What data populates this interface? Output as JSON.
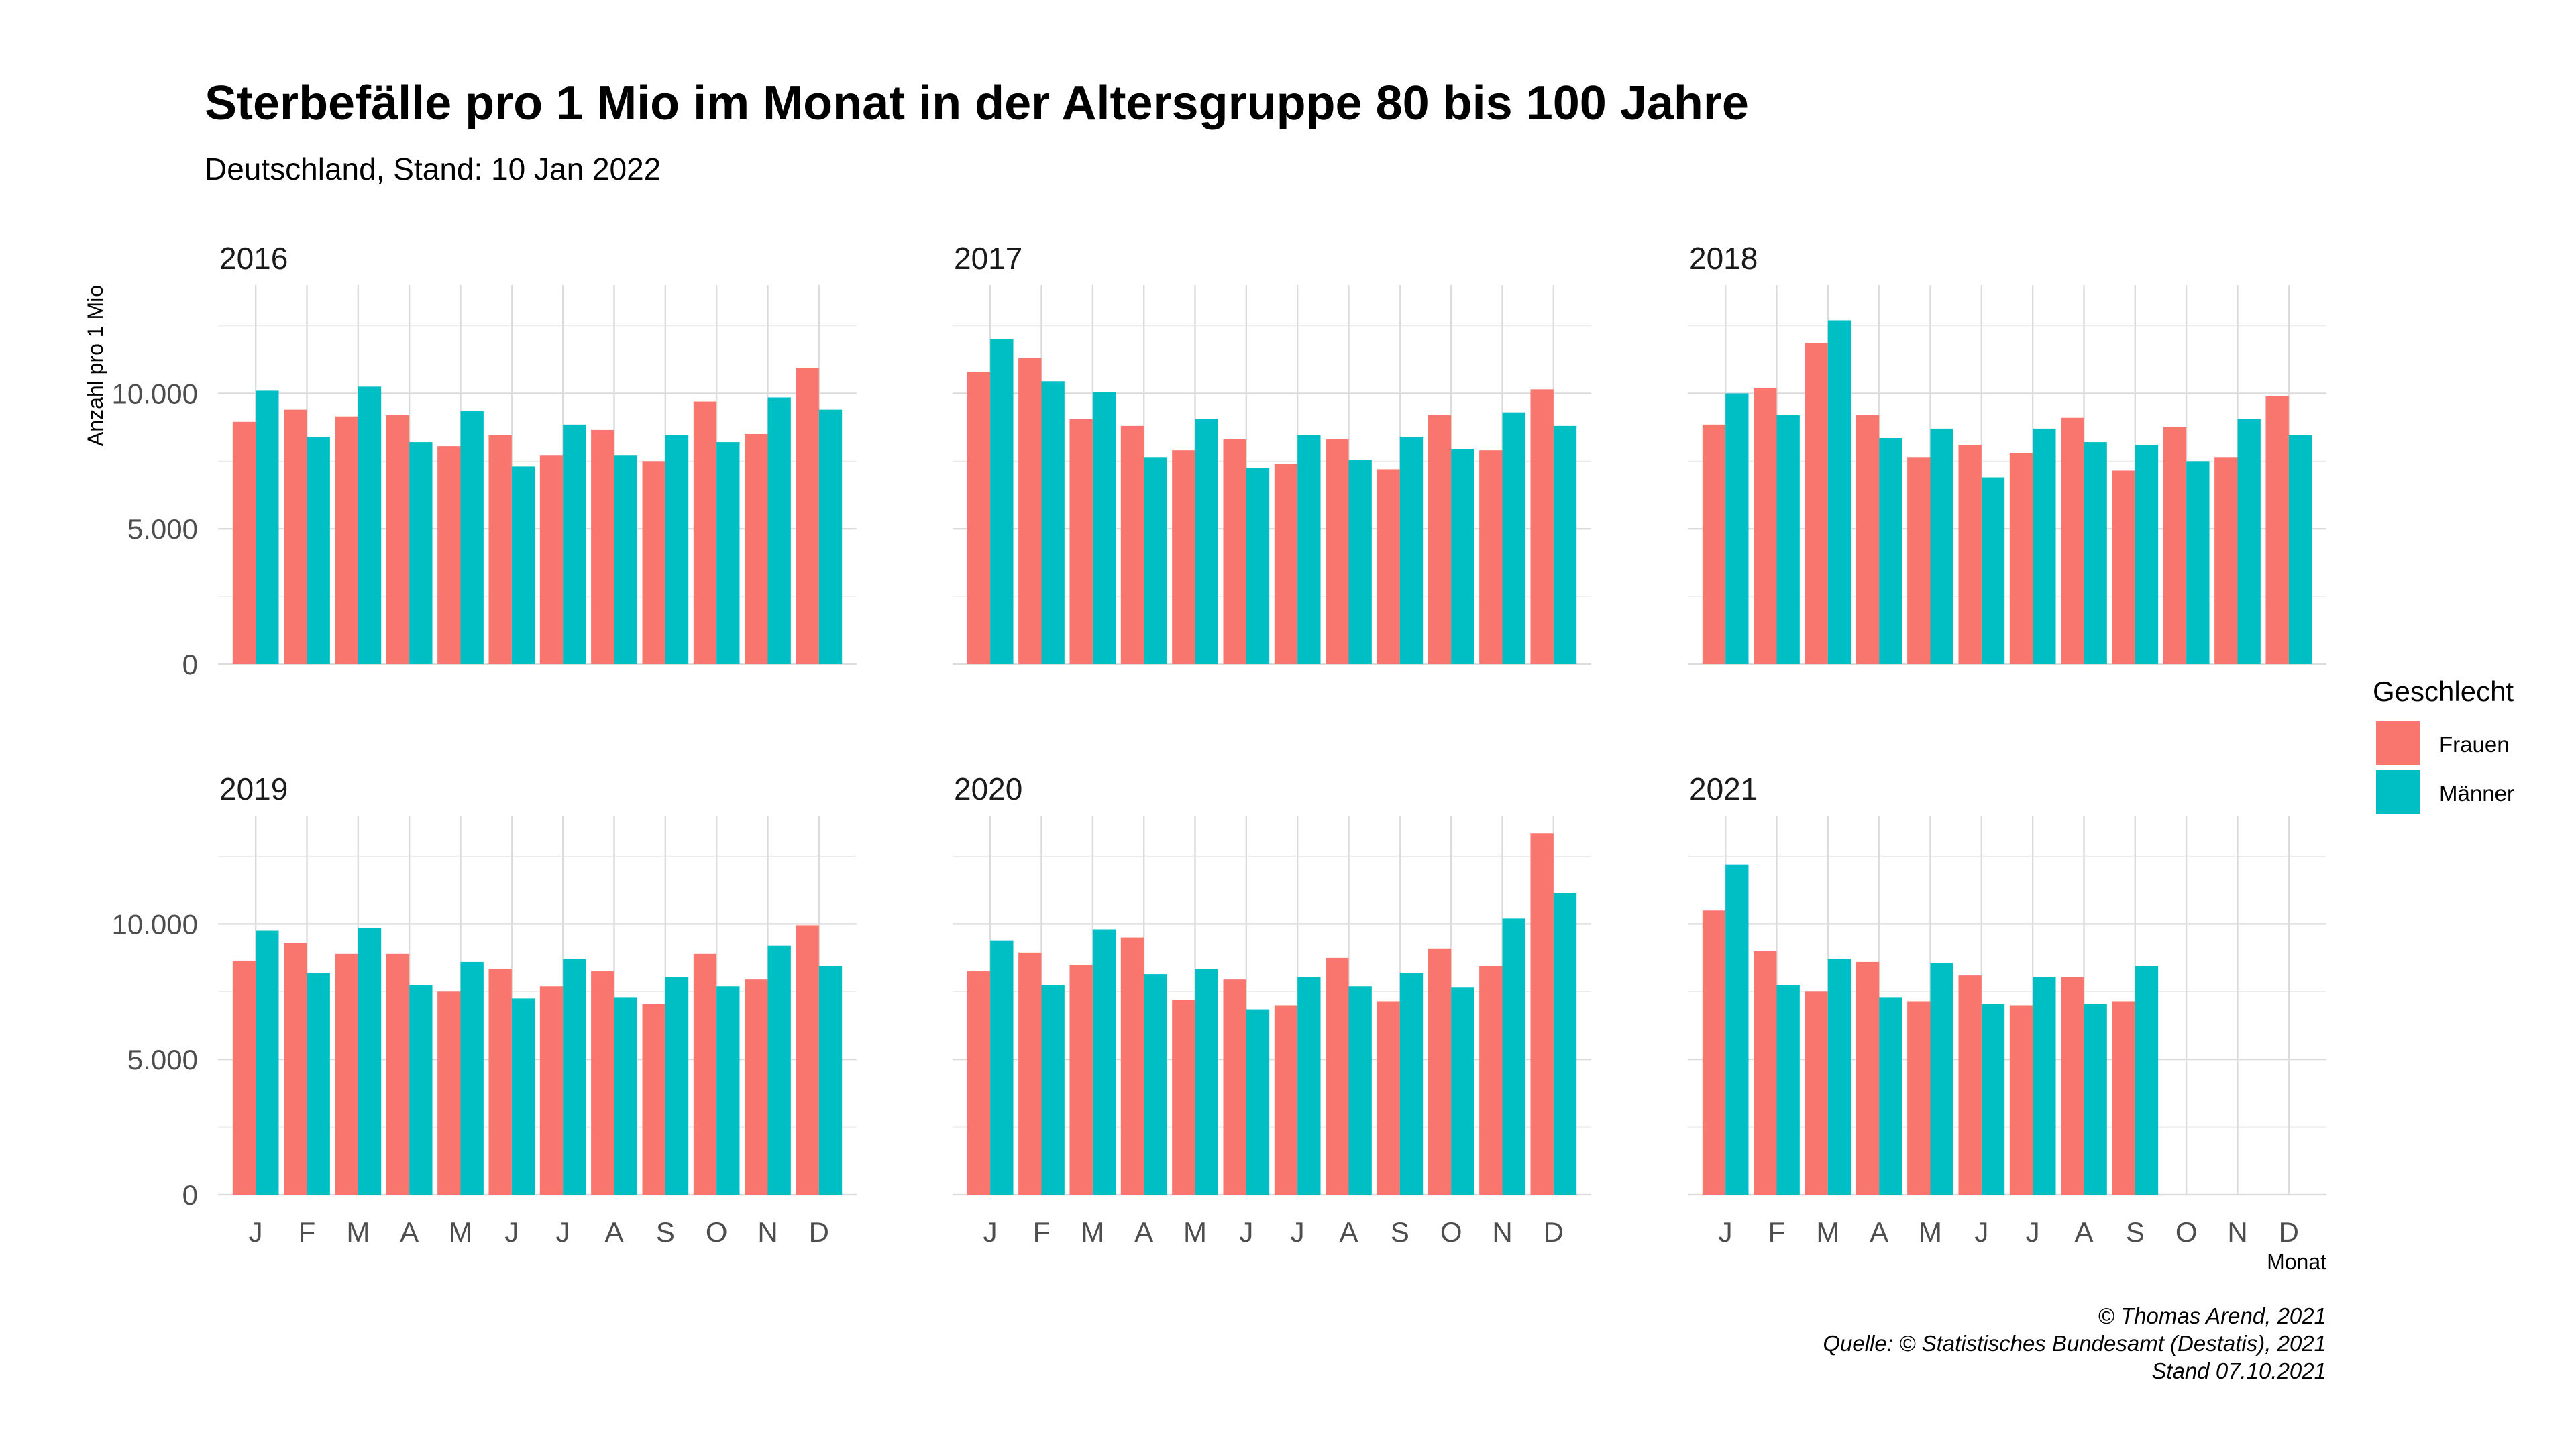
{
  "chart_data": {
    "type": "bar",
    "title": "Sterbefälle pro 1 Mio im Monat in der Altersgruppe 80 bis 100 Jahre",
    "subtitle": "Deutschland, Stand: 10 Jan 2022",
    "xlabel": "Monat",
    "ylabel": "Anzahl pro 1 Mio",
    "ylim": [
      0,
      14000
    ],
    "y_ticks": [
      0,
      5000,
      10000
    ],
    "y_tick_labels": [
      "0",
      "5.000",
      "10.000"
    ],
    "categories": [
      "J",
      "F",
      "M",
      "A",
      "M",
      "J",
      "J",
      "A",
      "S",
      "O",
      "N",
      "D"
    ],
    "legend": {
      "title": "Geschlecht",
      "placement": "right",
      "entries": [
        {
          "name": "Frauen",
          "color": "#F8766D"
        },
        {
          "name": "Männer",
          "color": "#00BFC4"
        }
      ]
    },
    "facets": [
      {
        "label": "2016",
        "series": [
          {
            "name": "Frauen",
            "values": [
              8950,
              9400,
              9150,
              9200,
              8050,
              8450,
              7700,
              8650,
              7500,
              9700,
              8500,
              10950
            ]
          },
          {
            "name": "Männer",
            "values": [
              10100,
              8400,
              10250,
              8200,
              9350,
              7300,
              8850,
              7700,
              8450,
              8200,
              9850,
              9400
            ]
          }
        ]
      },
      {
        "label": "2017",
        "series": [
          {
            "name": "Frauen",
            "values": [
              10800,
              11300,
              9050,
              8800,
              7900,
              8300,
              7400,
              8300,
              7200,
              9200,
              7900,
              10150
            ]
          },
          {
            "name": "Männer",
            "values": [
              12000,
              10450,
              10050,
              7650,
              9050,
              7250,
              8450,
              7550,
              8400,
              7950,
              9300,
              8800
            ]
          }
        ]
      },
      {
        "label": "2018",
        "series": [
          {
            "name": "Frauen",
            "values": [
              8850,
              10200,
              11850,
              9200,
              7650,
              8100,
              7800,
              9100,
              7150,
              8750,
              7650,
              9900
            ]
          },
          {
            "name": "Männer",
            "values": [
              10000,
              9200,
              12700,
              8350,
              8700,
              6900,
              8700,
              8200,
              8100,
              7500,
              9050,
              8450
            ]
          }
        ]
      },
      {
        "label": "2019",
        "series": [
          {
            "name": "Frauen",
            "values": [
              8650,
              9300,
              8900,
              8900,
              7500,
              8350,
              7700,
              8250,
              7050,
              8900,
              7950,
              9950
            ]
          },
          {
            "name": "Männer",
            "values": [
              9750,
              8200,
              9850,
              7750,
              8600,
              7250,
              8700,
              7300,
              8050,
              7700,
              9200,
              8450
            ]
          }
        ]
      },
      {
        "label": "2020",
        "series": [
          {
            "name": "Frauen",
            "values": [
              8250,
              8950,
              8500,
              9500,
              7200,
              7950,
              7000,
              8750,
              7150,
              9100,
              8450,
              13350
            ]
          },
          {
            "name": "Männer",
            "values": [
              9400,
              7750,
              9800,
              8150,
              8350,
              6850,
              8050,
              7700,
              8200,
              7650,
              10200,
              11150
            ]
          }
        ]
      },
      {
        "label": "2021",
        "series": [
          {
            "name": "Frauen",
            "values": [
              10500,
              9000,
              7500,
              8600,
              7150,
              8100,
              7000,
              8050,
              7150,
              null,
              null,
              null
            ]
          },
          {
            "name": "Männer",
            "values": [
              12200,
              7750,
              8700,
              7300,
              8550,
              7050,
              8050,
              7050,
              8450,
              null,
              null,
              null
            ]
          }
        ]
      }
    ],
    "caption": [
      "© Thomas Arend, 2021",
      "Quelle: © Statistisches Bundesamt (Destatis), 2021",
      "Stand 07.10.2021"
    ],
    "grid": true
  }
}
